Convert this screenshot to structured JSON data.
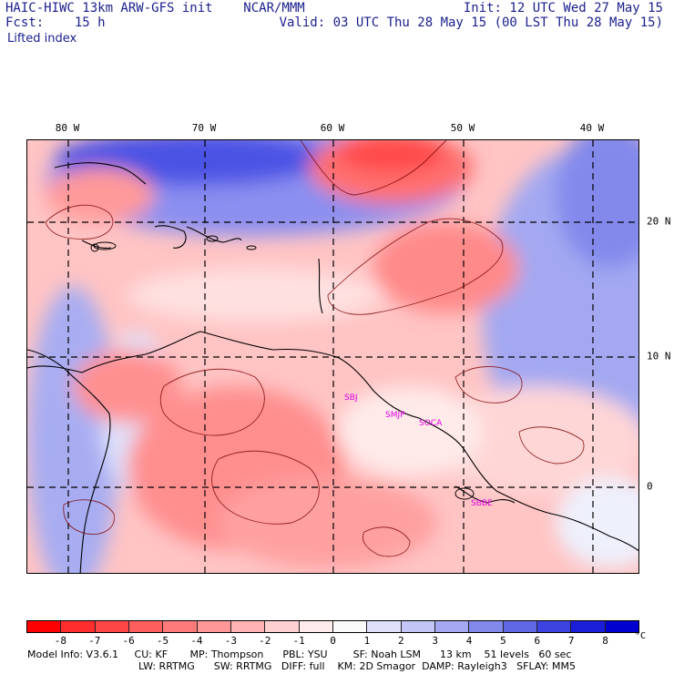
{
  "header": {
    "line1_left": "HAIC-HIWC 13km ARW-GFS init    NCAR/MMM",
    "line2_left": "Fcst:    15 h",
    "line1_right": "Init: 12 UTC Wed 27 May 15",
    "line2_right": "Valid: 03 UTC Thu 28 May 15 (00 LST Thu 28 May 15)",
    "field": "Lifted index"
  },
  "map": {
    "lon_labels": [
      "80 W",
      "70 W",
      "60 W",
      "50 W",
      "40 W"
    ],
    "lat_labels": [
      "20 N",
      "10 N",
      "0"
    ],
    "stations": [
      "SBJ",
      "SMJP",
      "SOCA",
      "SBBE"
    ]
  },
  "colorbar": {
    "ticks": [
      "-8",
      "-7",
      "-6",
      "-5",
      "-4",
      "-3",
      "-2",
      "-1",
      "0",
      "1",
      "2",
      "3",
      "4",
      "5",
      "6",
      "7",
      "8"
    ],
    "unit": "°C",
    "colors": [
      "#ff0000",
      "#ff2d2d",
      "#ff4545",
      "#ff5e5e",
      "#ff7a7a",
      "#ff9797",
      "#ffb3b3",
      "#ffd0d0",
      "#ffebeb",
      "#fafafa",
      "#dfe0fa",
      "#c2c5f6",
      "#a3a8f1",
      "#8289eb",
      "#6168e6",
      "#3c43e0",
      "#1a1ed9",
      "#0000d0"
    ]
  },
  "footer": {
    "line1": "Model Info: V3.6.1     CU: KF       MP: Thompson      PBL: YSU        SF: Noah LSM      13 km    51 levels   60 sec",
    "line2": "LW: RRTMG      SW: RRTMG   DIFF: full    KM: 2D Smagor  DAMP: Rayleigh3   SFLAY: MM5"
  }
}
